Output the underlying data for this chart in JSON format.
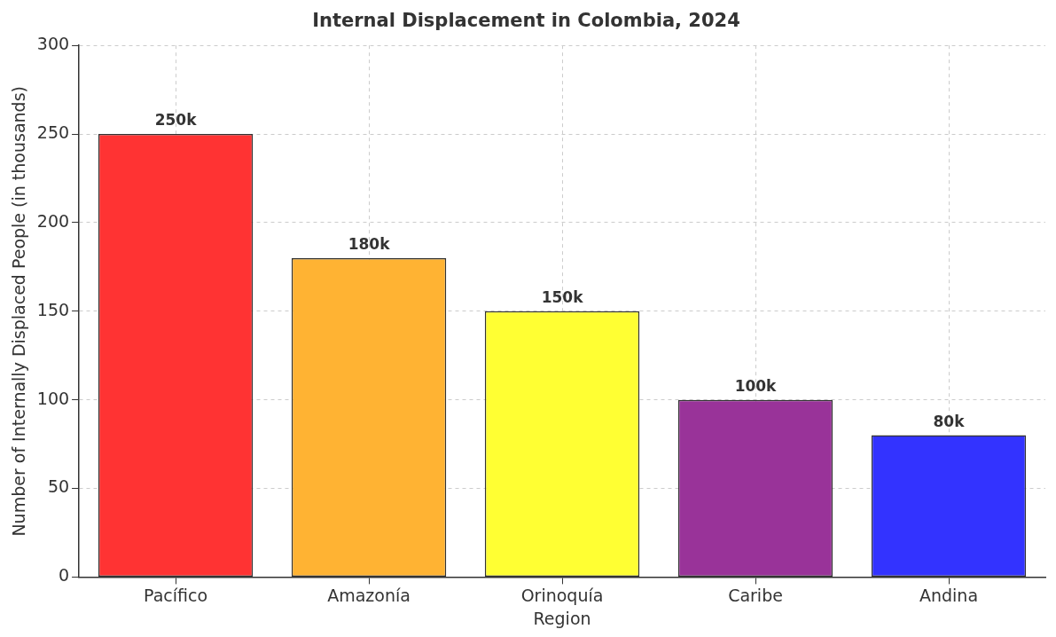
{
  "chart_data": {
    "type": "bar",
    "title": "Internal Displacement in Colombia, 2024",
    "xlabel": "Region",
    "ylabel": "Number of Internally Displaced People (in thousands)",
    "categories": [
      "Pacífico",
      "Amazonía",
      "Orinoquía",
      "Caribe",
      "Andina"
    ],
    "values": [
      250,
      180,
      150,
      100,
      80
    ],
    "value_labels": [
      "250k",
      "180k",
      "150k",
      "100k",
      "80k"
    ],
    "colors": [
      "#ff3333",
      "#ffb333",
      "#ffff33",
      "#993399",
      "#3333ff"
    ],
    "ylim": [
      0,
      300
    ],
    "yticks": [
      0,
      50,
      100,
      150,
      200,
      250,
      300
    ],
    "grid": true
  }
}
